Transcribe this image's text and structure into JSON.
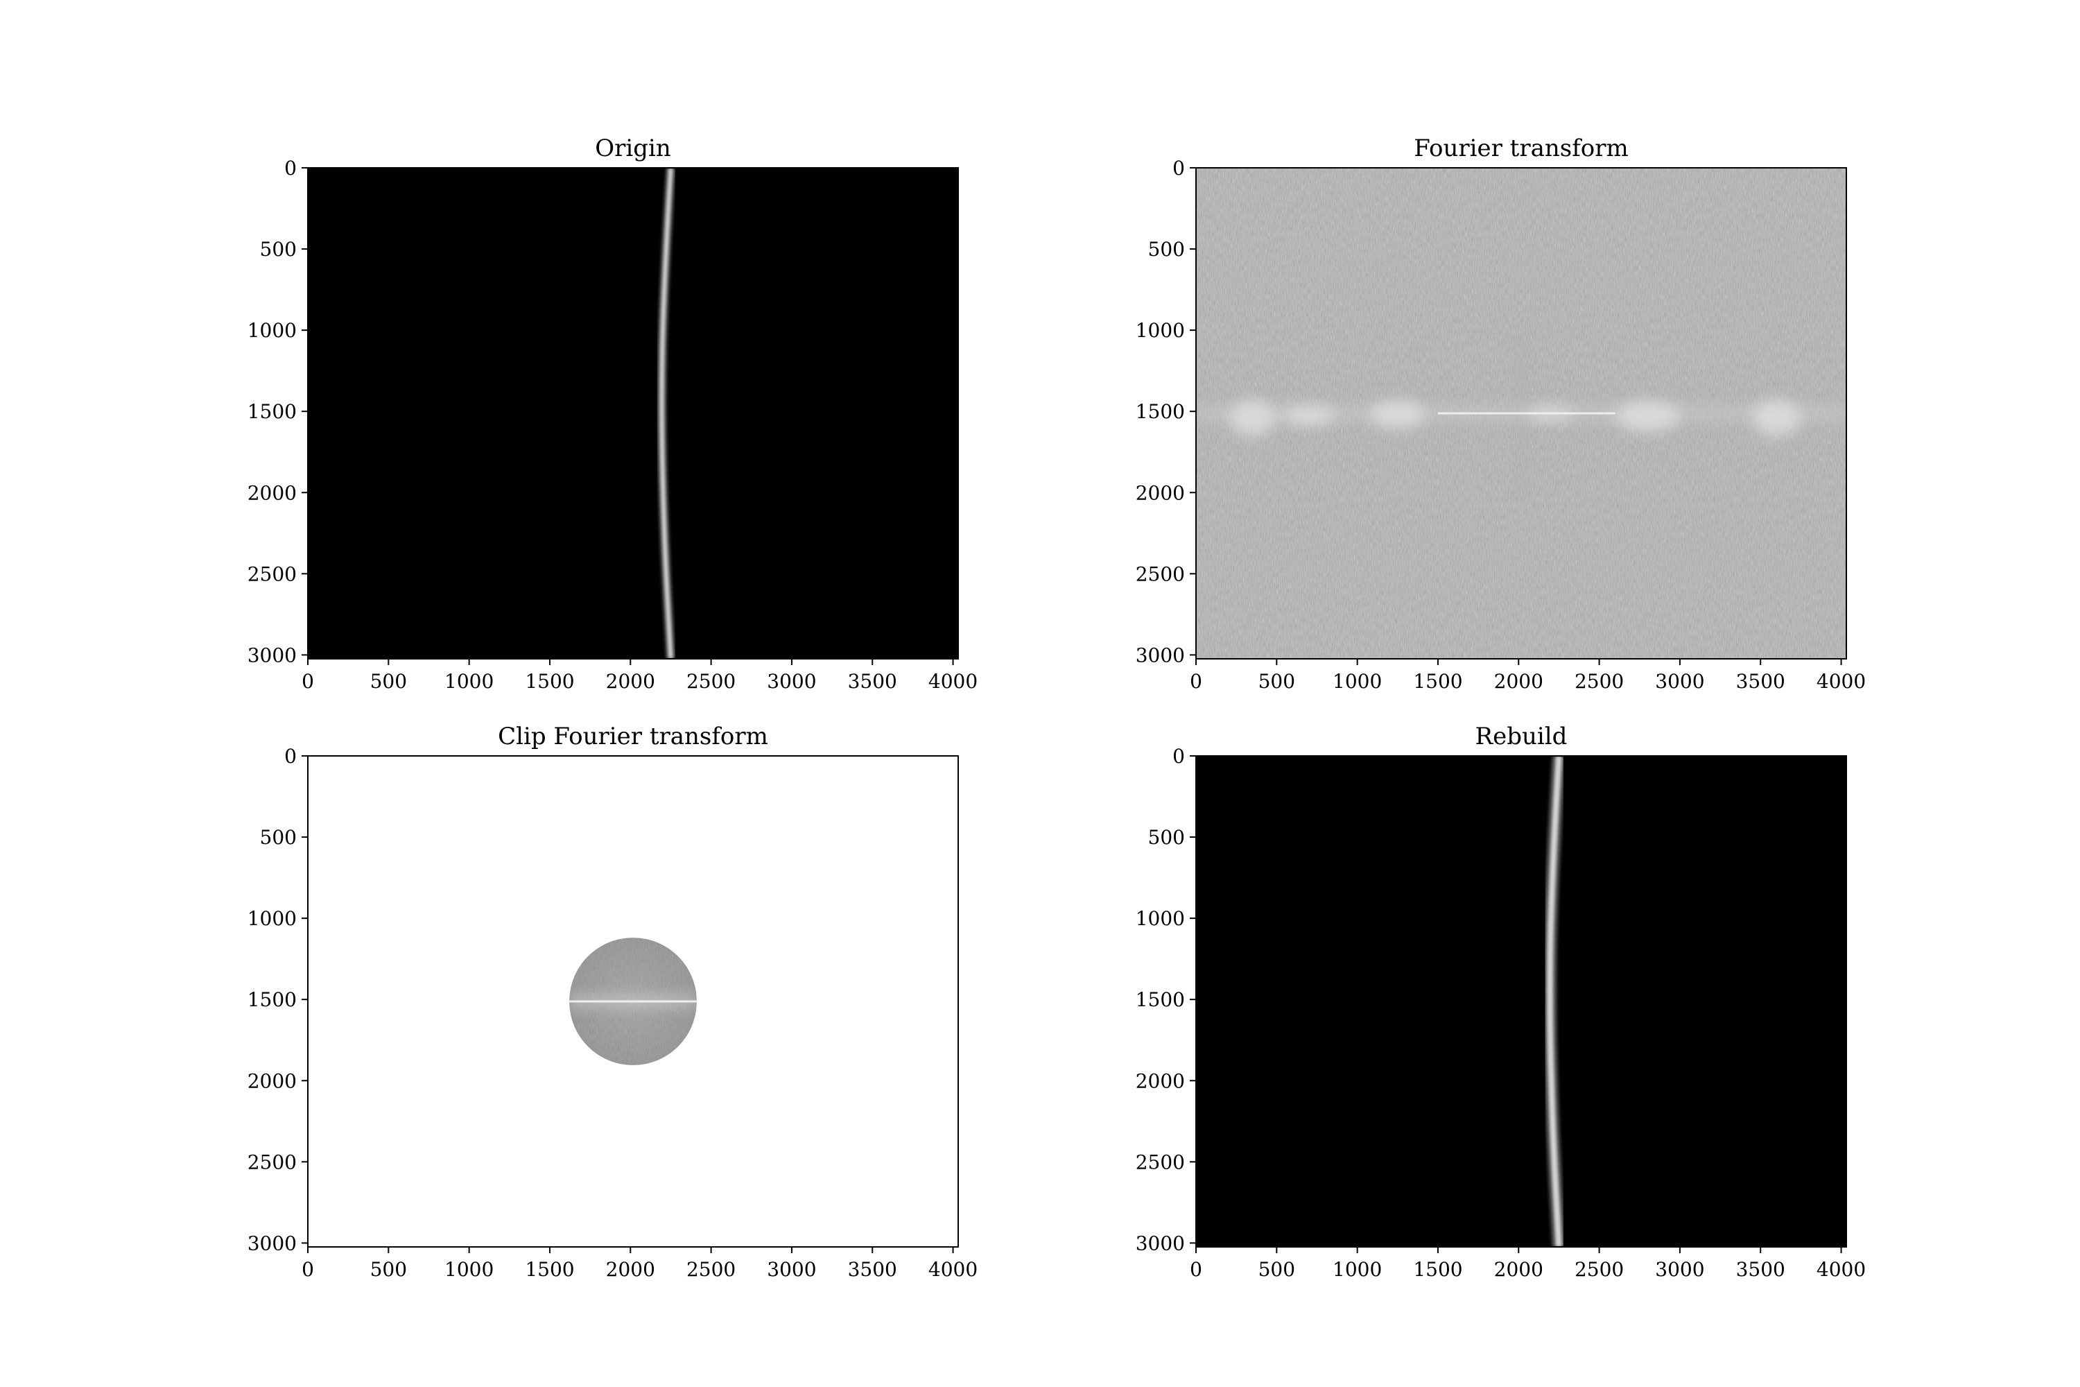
{
  "figure": {
    "layout": "2x2"
  },
  "chart_data": [
    {
      "id": "origin",
      "type": "heatmap",
      "title": "Origin",
      "colormap": "gray",
      "content": "bright thin curved vertical line on black background",
      "background": "#000000",
      "xlim": [
        0,
        4032
      ],
      "ylim": [
        3024,
        0
      ],
      "xticks": [
        0,
        500,
        1000,
        1500,
        2000,
        2500,
        3000,
        3500,
        4000
      ],
      "yticks": [
        0,
        500,
        1000,
        1500,
        2000,
        2500,
        3000
      ],
      "curve": [
        [
          2250,
          0
        ],
        [
          2205,
          750
        ],
        [
          2190,
          1500
        ],
        [
          2210,
          2300
        ],
        [
          2250,
          3024
        ]
      ],
      "curve_width": 28
    },
    {
      "id": "fourier",
      "type": "heatmap",
      "title": "Fourier transform",
      "colormap": "gray",
      "content": "log-magnitude spectrum: mid-gray noise with bright horizontal band near y=1512 and faint vertical streak near x=2016",
      "background": "#808080",
      "xlim": [
        0,
        4032
      ],
      "ylim": [
        3024,
        0
      ],
      "xticks": [
        0,
        500,
        1000,
        1500,
        2000,
        2500,
        3000,
        3500,
        4000
      ],
      "yticks": [
        0,
        500,
        1000,
        1500,
        2000,
        2500,
        3000
      ],
      "band_center": [
        2016,
        1512
      ]
    },
    {
      "id": "clip",
      "type": "heatmap",
      "title": "Clip Fourier transform",
      "colormap": "gray",
      "content": "white background with circular gray region of the spectrum kept",
      "background": "#ffffff",
      "xlim": [
        0,
        4032
      ],
      "ylim": [
        3024,
        0
      ],
      "xticks": [
        0,
        500,
        1000,
        1500,
        2000,
        2500,
        3000,
        3500,
        4000
      ],
      "yticks": [
        0,
        500,
        1000,
        1500,
        2000,
        2500,
        3000
      ],
      "circle_center": [
        2016,
        1512
      ],
      "circle_radius": 395
    },
    {
      "id": "rebuild",
      "type": "heatmap",
      "title": "Rebuild",
      "colormap": "gray",
      "content": "reconstructed bright curved vertical line on black background",
      "background": "#000000",
      "xlim": [
        0,
        4032
      ],
      "ylim": [
        3024,
        0
      ],
      "xticks": [
        0,
        500,
        1000,
        1500,
        2000,
        2500,
        3000,
        3500,
        4000
      ],
      "yticks": [
        0,
        500,
        1000,
        1500,
        2000,
        2500,
        3000
      ],
      "curve": [
        [
          2250,
          0
        ],
        [
          2205,
          750
        ],
        [
          2190,
          1500
        ],
        [
          2210,
          2300
        ],
        [
          2250,
          3024
        ]
      ],
      "curve_width": 40
    }
  ]
}
